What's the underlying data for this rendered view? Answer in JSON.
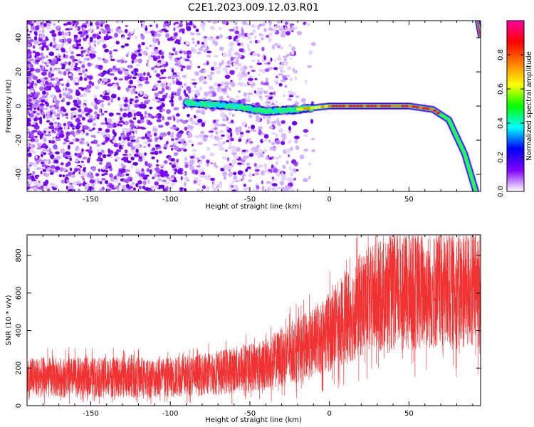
{
  "figure_title": "C2E1.2023.009.12.03.R01",
  "chart_data": [
    {
      "type": "heatmap",
      "name": "spectrogram",
      "xlabel": "Height of straight line (km)",
      "ylabel": "Frequency (Hz)",
      "xlim": [
        -190,
        95
      ],
      "ylim": [
        -50,
        50
      ],
      "xticks": [
        -150,
        -100,
        -50,
        0,
        50
      ],
      "yticks": [
        -40,
        -20,
        0,
        20,
        40
      ],
      "description_values": {
        "noise_region_x": [
          -190,
          -20
        ],
        "signal_line": [
          {
            "x": -90,
            "f": 2
          },
          {
            "x": -60,
            "f": 0
          },
          {
            "x": -40,
            "f": -3
          },
          {
            "x": -20,
            "f": -2
          },
          {
            "x": 0,
            "f": 0
          },
          {
            "x": 50,
            "f": 0
          },
          {
            "x": 65,
            "f": -2
          },
          {
            "x": 75,
            "f": -8
          },
          {
            "x": 85,
            "f": -28
          },
          {
            "x": 92,
            "f": -50
          }
        ],
        "secondary_line": [
          {
            "x": 93,
            "f": 50
          },
          {
            "x": 95,
            "f": 40
          }
        ]
      },
      "colorbar": {
        "label": "Normalized spectral amplitude",
        "range": [
          0.0,
          1.0
        ],
        "ticks": [
          0.0,
          0.2,
          0.4,
          0.6,
          0.8
        ],
        "colors": [
          "#ffffff",
          "#8000ff",
          "#0000ff",
          "#00ffff",
          "#00ff00",
          "#ffff00",
          "#ff8000",
          "#ff0000",
          "#ff00a0"
        ]
      }
    },
    {
      "type": "line",
      "name": "snr",
      "xlabel": "Height of straight line (km)",
      "ylabel": "SNR (10 * v/v)",
      "xlim": [
        -190,
        95
      ],
      "ylim": [
        0,
        910
      ],
      "xticks": [
        -150,
        -100,
        -50,
        0,
        50
      ],
      "yticks": [
        0,
        200,
        400,
        600,
        800
      ],
      "color": "#f03232",
      "series_profile": [
        {
          "x": -190,
          "y": 150
        },
        {
          "x": -100,
          "y": 150
        },
        {
          "x": -70,
          "y": 175
        },
        {
          "x": -40,
          "y": 220
        },
        {
          "x": -25,
          "y": 280
        },
        {
          "x": -10,
          "y": 330
        },
        {
          "x": 0,
          "y": 400
        },
        {
          "x": 10,
          "y": 460
        },
        {
          "x": 20,
          "y": 540
        },
        {
          "x": 35,
          "y": 590
        },
        {
          "x": 60,
          "y": 610
        },
        {
          "x": 95,
          "y": 620
        }
      ]
    }
  ]
}
